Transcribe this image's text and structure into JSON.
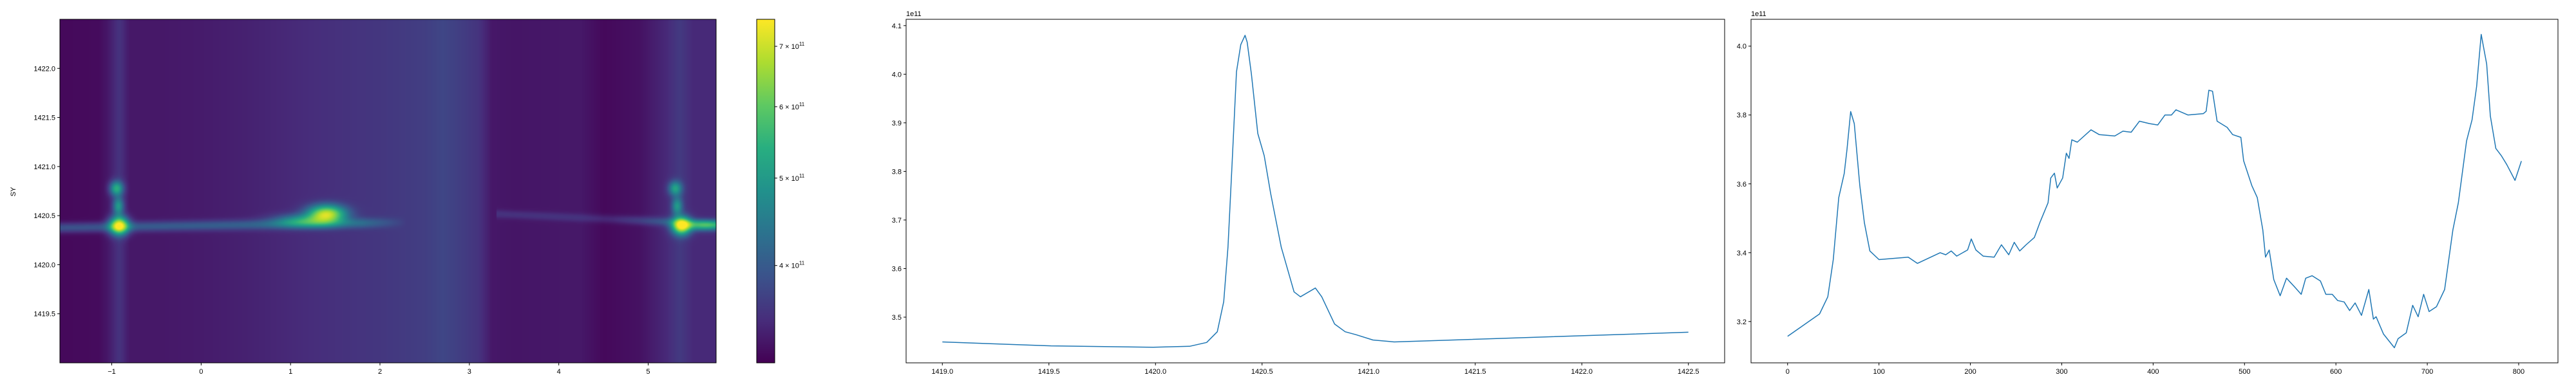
{
  "chart_data": [
    {
      "type": "heatmap",
      "ylabel": "SY",
      "xlim": [
        -1.58,
        5.76
      ],
      "ylim": [
        1419.0,
        1422.5
      ],
      "xticks": [
        -1,
        0,
        1,
        2,
        3,
        4,
        5
      ],
      "xtick_labels": [
        "−1",
        "0",
        "1",
        "2",
        "3",
        "4",
        "5"
      ],
      "yticks": [
        1419.5,
        1420.0,
        1420.5,
        1421.0,
        1421.5,
        1422.0
      ],
      "ytick_labels": [
        "1419.5",
        "1420.0",
        "1420.5",
        "1421.0",
        "1421.5",
        "1422.0"
      ],
      "colormap": "viridis",
      "colorbar": {
        "scale": "log",
        "range": [
          312000000000.0,
          750000000000.0
        ],
        "ticks": [
          400000000000.0,
          500000000000.0,
          600000000000.0,
          700000000000.0
        ],
        "tick_labels": [
          {
            "mantissa": "4",
            "base": "10",
            "exp": "11"
          },
          {
            "mantissa": "5",
            "base": "10",
            "exp": "11"
          },
          {
            "mantissa": "6",
            "base": "10",
            "exp": "11"
          },
          {
            "mantissa": "7",
            "base": "10",
            "exp": "11"
          }
        ]
      },
      "background_profile": {
        "x": [
          -1.58,
          -1.15,
          -1.05,
          -0.92,
          -0.8,
          -0.5,
          0,
          0.5,
          1.0,
          1.5,
          2.0,
          2.5,
          2.7,
          2.9,
          3.1,
          3.25,
          3.5,
          4.0,
          4.25,
          4.5,
          4.9,
          5.2,
          5.35,
          5.5,
          5.76
        ],
        "values_e11": [
          3.18,
          3.2,
          3.3,
          3.55,
          3.3,
          3.3,
          3.33,
          3.38,
          3.45,
          3.52,
          3.58,
          3.66,
          3.75,
          3.66,
          3.55,
          3.3,
          3.28,
          3.3,
          3.3,
          3.18,
          3.25,
          3.45,
          3.62,
          3.45,
          3.45
        ]
      },
      "hot_spots": [
        {
          "x": -0.92,
          "y": 1420.4,
          "value_e11": 7.4
        },
        {
          "x": -0.95,
          "y": 1420.78,
          "value_e11": 5.4
        },
        {
          "x": -0.93,
          "y": 1420.6,
          "value_e11": 5.0
        },
        {
          "x": 1.4,
          "y": 1420.52,
          "value_e11": 6.9
        },
        {
          "x": 1.15,
          "y": 1420.45,
          "value_e11": 5.0
        },
        {
          "x": 5.37,
          "y": 1420.4,
          "value_e11": 7.4
        },
        {
          "x": 5.3,
          "y": 1420.78,
          "value_e11": 5.2
        },
        {
          "x": 5.32,
          "y": 1420.6,
          "value_e11": 5.0
        },
        {
          "x": 5.62,
          "y": 1420.4,
          "value_e11": 5.2
        }
      ]
    },
    {
      "type": "line",
      "offset_text": "1e11",
      "xlim": [
        1418.83,
        1422.67
      ],
      "ylim": [
        3.406,
        4.113
      ],
      "xticks": [
        1419.0,
        1419.5,
        1420.0,
        1420.5,
        1421.0,
        1421.5,
        1422.0,
        1422.5
      ],
      "xtick_labels": [
        "1419.0",
        "1419.5",
        "1420.0",
        "1420.5",
        "1421.0",
        "1421.5",
        "1422.0",
        "1422.5"
      ],
      "yticks": [
        3.5,
        3.6,
        3.7,
        3.8,
        3.9,
        4.0,
        4.1
      ],
      "ytick_labels": [
        "3.5",
        "3.6",
        "3.7",
        "3.8",
        "3.9",
        "4.0",
        "4.1"
      ],
      "color": "#1f77b4",
      "x": [
        1419.0,
        1419.51,
        1419.99,
        1420.16,
        1420.24,
        1420.29,
        1420.32,
        1420.34,
        1420.36,
        1420.38,
        1420.4,
        1420.42,
        1420.43,
        1420.45,
        1420.48,
        1420.51,
        1420.54,
        1420.59,
        1420.65,
        1420.68,
        1420.75,
        1420.78,
        1420.84,
        1420.89,
        1420.94,
        1421.02,
        1421.12,
        1422.5
      ],
      "y": [
        3.449,
        3.441,
        3.438,
        3.44,
        3.448,
        3.47,
        3.532,
        3.644,
        3.822,
        4.005,
        4.061,
        4.08,
        4.066,
        4.0,
        3.878,
        3.832,
        3.755,
        3.644,
        3.552,
        3.542,
        3.56,
        3.542,
        3.486,
        3.47,
        3.464,
        3.453,
        3.449,
        3.469
      ]
    },
    {
      "type": "line",
      "offset_text": "1e11",
      "xlim": [
        -40,
        843
      ],
      "ylim": [
        3.08,
        4.078
      ],
      "xticks": [
        0,
        100,
        200,
        300,
        400,
        500,
        600,
        700,
        800
      ],
      "xtick_labels": [
        "0",
        "100",
        "200",
        "300",
        "400",
        "500",
        "600",
        "700",
        "800"
      ],
      "yticks": [
        3.2,
        3.4,
        3.6,
        3.8,
        4.0
      ],
      "ytick_labels": [
        "3.2",
        "3.4",
        "3.6",
        "3.8",
        "4.0"
      ],
      "color": "#1f77b4",
      "x": [
        0,
        21,
        35,
        44,
        50,
        56,
        62,
        65,
        69,
        73,
        79,
        84,
        90,
        100,
        132,
        142,
        167,
        173,
        179,
        185,
        197,
        201,
        206,
        214,
        226,
        234,
        242,
        248,
        254,
        261,
        270,
        276,
        285,
        288,
        292,
        295,
        301,
        305,
        308,
        311,
        317,
        332,
        341,
        358,
        367,
        376,
        385,
        396,
        405,
        413,
        420,
        425,
        438,
        455,
        458,
        461,
        465,
        470,
        481,
        487,
        496,
        499,
        508,
        514,
        520,
        523,
        527,
        532,
        539,
        546,
        555,
        562,
        567,
        574,
        583,
        589,
        596,
        602,
        609,
        615,
        621,
        628,
        636,
        641,
        644,
        652,
        664,
        668,
        677,
        684,
        690,
        696,
        702,
        710,
        719,
        728,
        734,
        743,
        749,
        754,
        759,
        765,
        769,
        775,
        781,
        787,
        796,
        803
      ],
      "y": [
        3.157,
        3.196,
        3.222,
        3.272,
        3.38,
        3.56,
        3.63,
        3.7,
        3.81,
        3.775,
        3.595,
        3.487,
        3.405,
        3.38,
        3.387,
        3.369,
        3.4,
        3.394,
        3.405,
        3.39,
        3.408,
        3.44,
        3.408,
        3.39,
        3.387,
        3.423,
        3.394,
        3.43,
        3.405,
        3.423,
        3.444,
        3.487,
        3.545,
        3.617,
        3.631,
        3.588,
        3.617,
        3.689,
        3.674,
        3.728,
        3.721,
        3.757,
        3.743,
        3.739,
        3.753,
        3.75,
        3.782,
        3.775,
        3.771,
        3.8,
        3.8,
        3.815,
        3.8,
        3.804,
        3.811,
        3.872,
        3.869,
        3.782,
        3.764,
        3.743,
        3.735,
        3.667,
        3.595,
        3.56,
        3.466,
        3.387,
        3.408,
        3.322,
        3.275,
        3.326,
        3.3,
        3.279,
        3.326,
        3.333,
        3.318,
        3.279,
        3.279,
        3.261,
        3.257,
        3.232,
        3.254,
        3.218,
        3.293,
        3.207,
        3.214,
        3.164,
        3.124,
        3.15,
        3.167,
        3.247,
        3.214,
        3.279,
        3.229,
        3.243,
        3.293,
        3.466,
        3.545,
        3.725,
        3.786,
        3.883,
        4.034,
        3.948,
        3.797,
        3.703,
        3.682,
        3.656,
        3.61,
        3.666
      ]
    }
  ]
}
